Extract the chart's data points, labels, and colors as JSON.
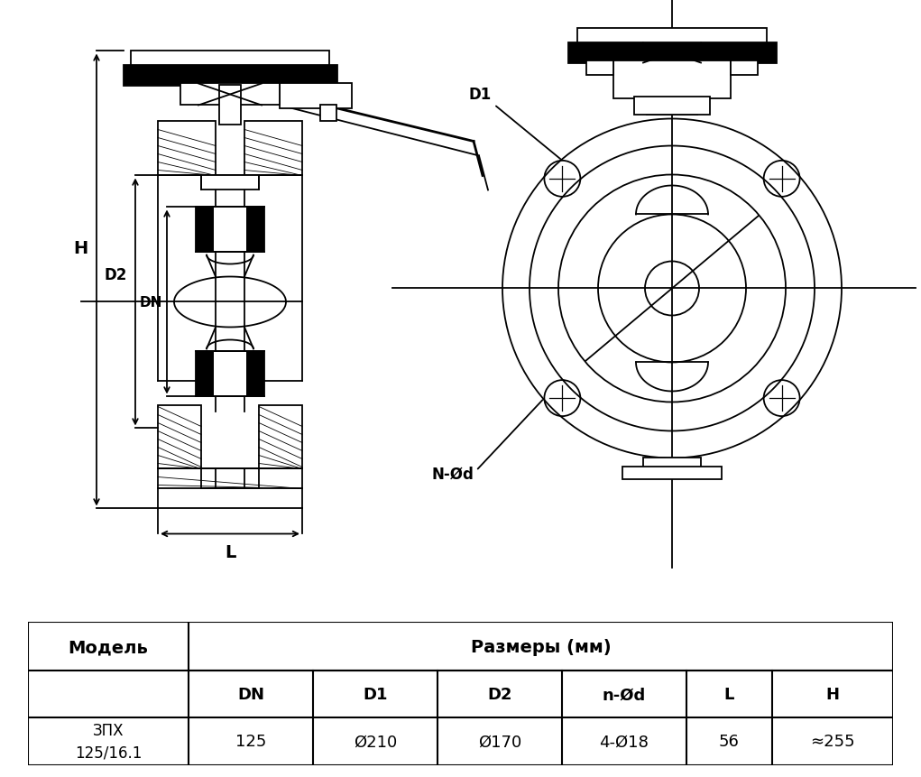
{
  "bg_color": "#ffffff",
  "table": {
    "col_model": "Модель",
    "col_sizes": "Размеры (мм)",
    "sub_headers": [
      "DN",
      "D1",
      "D2",
      "n-Ød",
      "L",
      "H"
    ],
    "model_name": "ЗПХ\n125/16.1",
    "values": [
      "125",
      "Ø210",
      "Ø170",
      "4-Ø18",
      "56",
      "≈255"
    ]
  }
}
